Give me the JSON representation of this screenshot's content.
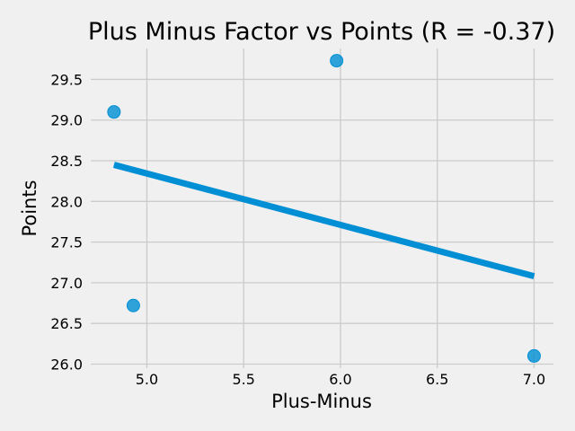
{
  "chart_data": {
    "type": "scatter",
    "title": "Plus Minus Factor vs Points (R = -0.37)",
    "xlabel": "Plus-Minus",
    "ylabel": "Points",
    "xlim": [
      4.71,
      7.1
    ],
    "ylim": [
      25.95,
      29.88
    ],
    "xticks": [
      "5.0",
      "5.5",
      "6.0",
      "6.5",
      "7.0"
    ],
    "yticks": [
      "26.0",
      "26.5",
      "27.0",
      "27.5",
      "28.0",
      "28.5",
      "29.0",
      "29.5"
    ],
    "grid": true,
    "legend": "none",
    "series": [
      {
        "points": [
          {
            "x": 4.83,
            "y": 29.1
          },
          {
            "x": 4.93,
            "y": 26.72
          },
          {
            "x": 5.98,
            "y": 29.73
          },
          {
            "x": 7.0,
            "y": 26.1
          }
        ]
      }
    ],
    "trendline": {
      "x": [
        4.83,
        7.0
      ],
      "y": [
        28.45,
        27.08
      ]
    },
    "colors": {
      "point": "#008fd5",
      "line": "#008fd5",
      "grid": "#cbcbcb",
      "background": "#f0f0f0"
    }
  }
}
